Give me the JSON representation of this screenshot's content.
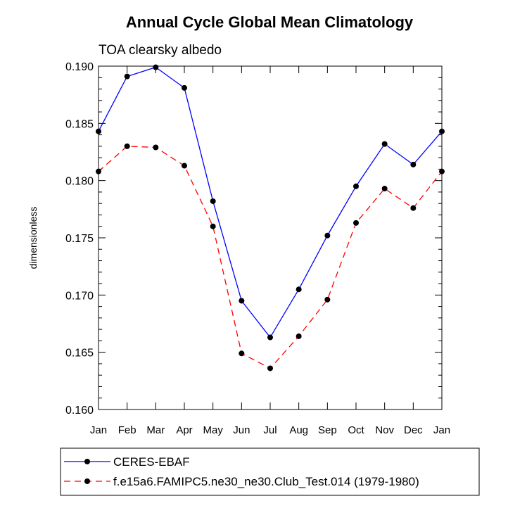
{
  "chart_data": {
    "type": "line",
    "title": "Annual Cycle Global Mean Climatology",
    "subtitle": "TOA clearsky albedo",
    "xlabel": "",
    "ylabel": "dimensionless",
    "categories": [
      "Jan",
      "Feb",
      "Mar",
      "Apr",
      "May",
      "Jun",
      "Jul",
      "Aug",
      "Sep",
      "Oct",
      "Nov",
      "Dec",
      "Jan"
    ],
    "ylim": [
      0.16,
      0.19
    ],
    "yticks": [
      "0.160",
      "0.165",
      "0.170",
      "0.175",
      "0.180",
      "0.185",
      "0.190"
    ],
    "grid": false,
    "legend_position": "bottom",
    "series": [
      {
        "name": "CERES-EBAF",
        "color": "#0000ff",
        "line_style": "solid",
        "values": [
          0.1843,
          0.1891,
          0.1899,
          0.1881,
          0.1782,
          0.1695,
          0.1663,
          0.1705,
          0.1752,
          0.1795,
          0.1832,
          0.1814,
          0.1843
        ]
      },
      {
        "name": "f.e15a6.FAMIPC5.ne30_ne30.Club_Test.014 (1979-1980)",
        "color": "#ff0000",
        "line_style": "dashed",
        "values": [
          0.1808,
          0.183,
          0.1829,
          0.1813,
          0.176,
          0.1649,
          0.1636,
          0.1664,
          0.1696,
          0.1763,
          0.1793,
          0.1776,
          0.1808
        ]
      }
    ]
  }
}
